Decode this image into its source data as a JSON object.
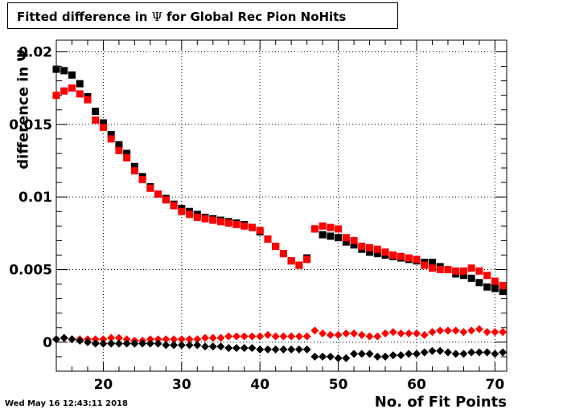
{
  "header": {
    "title_prefix": "Fitted difference in ",
    "title_symbol": "Ψ",
    "title_suffix": " for Global Rec Pion NoHits"
  },
  "footer": {
    "timestamp": "Wed May 16 12:43:11 2018"
  },
  "chart_data": {
    "type": "scatter",
    "title": "Fitted difference in Ψ for Global Rec Pion NoHits",
    "xlabel": "No. of Fit Points",
    "ylabel": "difference in Ψ",
    "xlim": [
      14,
      71.5
    ],
    "ylim": [
      -0.002,
      0.0208
    ],
    "x_ticks": [
      20,
      30,
      40,
      50,
      60,
      70
    ],
    "x_tick_labels": [
      "20",
      "30",
      "40",
      "50",
      "60",
      "70"
    ],
    "y_ticks": [
      0,
      0.005,
      0.01,
      0.015,
      0.02
    ],
    "y_tick_labels": [
      "0",
      "0.005",
      "0.01",
      "0.015",
      "0.02"
    ],
    "grid": true,
    "x": [
      14,
      15,
      16,
      17,
      18,
      19,
      20,
      21,
      22,
      23,
      24,
      25,
      26,
      27,
      28,
      29,
      30,
      31,
      32,
      33,
      34,
      35,
      36,
      37,
      38,
      39,
      40,
      41,
      42,
      43,
      44,
      45,
      46,
      47,
      48,
      49,
      50,
      51,
      52,
      53,
      54,
      55,
      56,
      57,
      58,
      59,
      60,
      61,
      62,
      63,
      64,
      65,
      66,
      67,
      68,
      69,
      70,
      71
    ],
    "series": [
      {
        "marker": "square",
        "color": "#000000",
        "values": [
          0.0188,
          0.0187,
          0.0184,
          0.0178,
          0.0169,
          0.0159,
          0.0151,
          0.0143,
          0.0136,
          0.013,
          0.0121,
          0.0114,
          0.0107,
          0.0102,
          0.0099,
          0.0095,
          0.0092,
          0.009,
          0.0088,
          0.0086,
          0.0085,
          0.0084,
          0.0083,
          0.0082,
          0.0081,
          0.0079,
          0.0076,
          0.0071,
          0.0066,
          0.0061,
          0.0056,
          0.0053,
          0.0058,
          0.0078,
          0.0074,
          0.0073,
          0.0072,
          0.0069,
          0.0067,
          0.0064,
          0.0062,
          0.0061,
          0.006,
          0.0059,
          0.0058,
          0.0057,
          0.0056,
          0.0055,
          0.0055,
          0.0052,
          0.005,
          0.0047,
          0.0046,
          0.0044,
          0.0041,
          0.0038,
          0.0037,
          0.0035
        ]
      },
      {
        "marker": "square",
        "color": "#ff0000",
        "values": [
          0.017,
          0.0173,
          0.0175,
          0.0171,
          0.0167,
          0.0153,
          0.0148,
          0.014,
          0.0132,
          0.0127,
          0.0118,
          0.0112,
          0.0106,
          0.0102,
          0.0098,
          0.0094,
          0.009,
          0.0088,
          0.0086,
          0.0085,
          0.0084,
          0.0083,
          0.0082,
          0.0081,
          0.008,
          0.0079,
          0.0077,
          0.0071,
          0.0066,
          0.0061,
          0.0056,
          0.0053,
          0.0057,
          0.0078,
          0.008,
          0.0079,
          0.0078,
          0.0072,
          0.007,
          0.0066,
          0.0065,
          0.0064,
          0.0062,
          0.006,
          0.0059,
          0.0058,
          0.0057,
          0.0053,
          0.0051,
          0.005,
          0.005,
          0.0049,
          0.0049,
          0.0051,
          0.0049,
          0.0046,
          0.0042,
          0.0039
        ]
      },
      {
        "marker": "diamond",
        "color": "#ff0000",
        "values": [
          0.0002,
          0.0003,
          0.0002,
          0.0002,
          0.0002,
          0.0002,
          0.0002,
          0.0003,
          0.0003,
          0.0002,
          0.0001,
          0.0001,
          0.0002,
          0.0002,
          0.0002,
          0.0002,
          0.0002,
          0.0002,
          0.0002,
          0.0003,
          0.0003,
          0.0003,
          0.0004,
          0.0004,
          0.0004,
          0.0004,
          0.0004,
          0.0005,
          0.0004,
          0.0004,
          0.0004,
          0.0004,
          0.0004,
          0.0008,
          0.0006,
          0.0005,
          0.0005,
          0.0006,
          0.0006,
          0.0005,
          0.0004,
          0.0004,
          0.0006,
          0.0007,
          0.0006,
          0.0006,
          0.0006,
          0.0005,
          0.0007,
          0.0008,
          0.0008,
          0.0008,
          0.0007,
          0.0008,
          0.0009,
          0.0007,
          0.0007,
          0.0007
        ]
      },
      {
        "marker": "diamond",
        "color": "#000000",
        "values": [
          0.0002,
          0.0003,
          0.0002,
          0.0001,
          0.0,
          -0.0001,
          -0.0001,
          -0.0001,
          -0.0001,
          -0.0001,
          -0.0001,
          -0.0001,
          -0.0001,
          -0.0001,
          -0.0002,
          -0.0002,
          -0.0002,
          -0.0002,
          -0.0002,
          -0.0003,
          -0.0003,
          -0.0003,
          -0.0004,
          -0.0004,
          -0.0004,
          -0.0004,
          -0.0005,
          -0.0005,
          -0.0005,
          -0.0005,
          -0.0005,
          -0.0005,
          -0.0005,
          -0.001,
          -0.001,
          -0.001,
          -0.0011,
          -0.0011,
          -0.0008,
          -0.0008,
          -0.0008,
          -0.001,
          -0.001,
          -0.0009,
          -0.0009,
          -0.0008,
          -0.0008,
          -0.0007,
          -0.0006,
          -0.0006,
          -0.0007,
          -0.0008,
          -0.0008,
          -0.0007,
          -0.0007,
          -0.0007,
          -0.0008,
          -0.0007
        ]
      }
    ]
  }
}
